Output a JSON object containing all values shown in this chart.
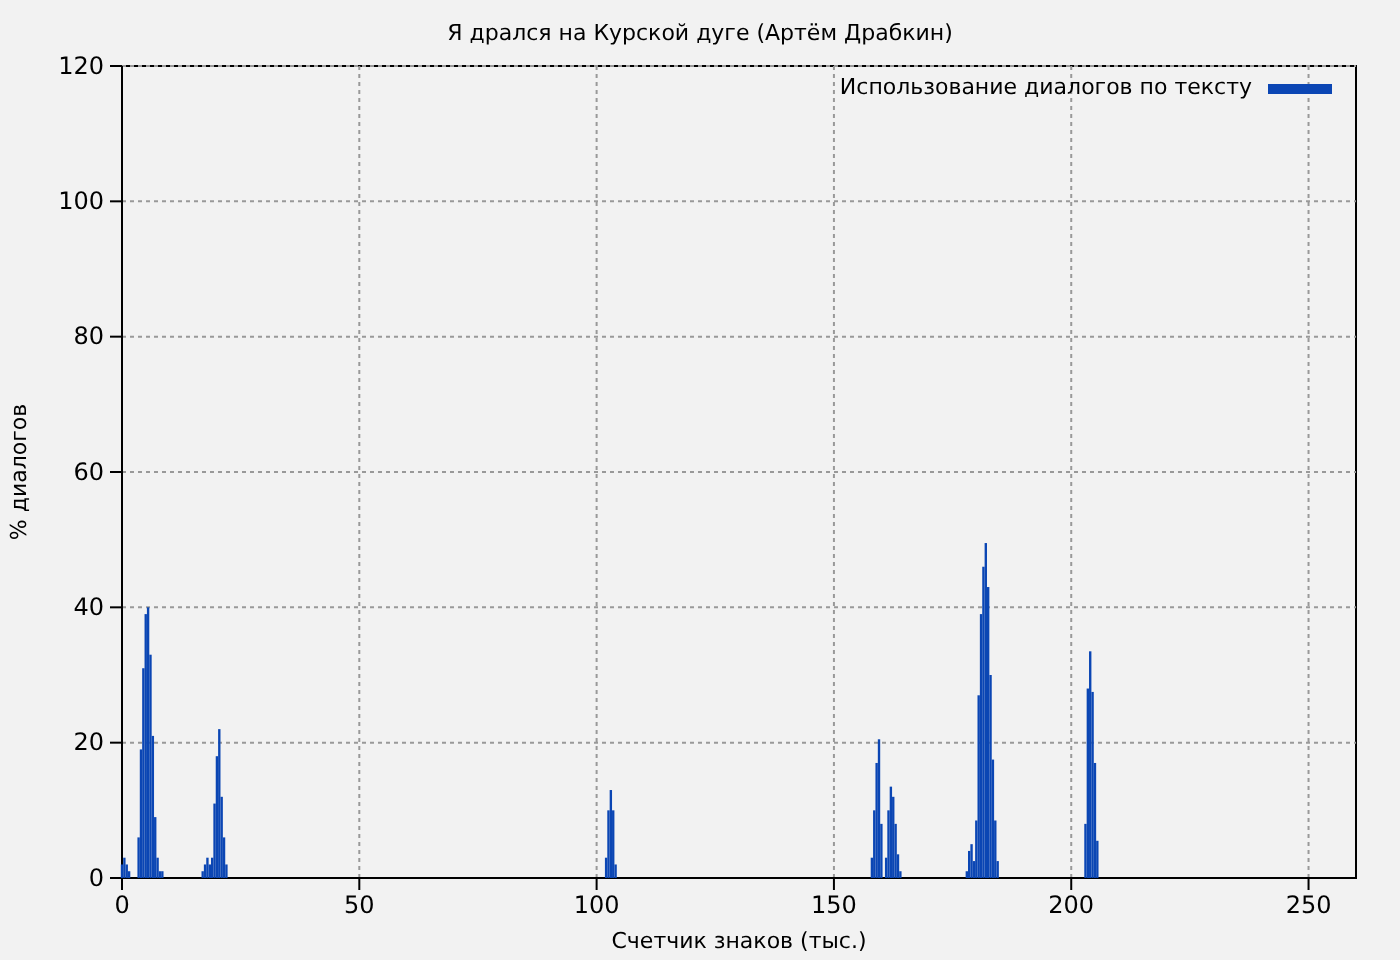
{
  "chart_data": {
    "type": "bar",
    "title": "Я дрался на Курской дуге (Артём Драбкин)",
    "xlabel": "Счетчик знаков (тыс.)",
    "ylabel": "% диалогов",
    "xlim": [
      0,
      260
    ],
    "xticks": [
      0,
      50,
      100,
      150,
      200,
      250
    ],
    "ylim": [
      0,
      120
    ],
    "yticks": [
      0,
      20,
      40,
      60,
      80,
      100,
      120
    ],
    "grid": true,
    "line_style": "dotted",
    "legend": "top right",
    "series": [
      {
        "name": "Использование диалогов по тексту",
        "color": "#0b46b4",
        "x": [
          0,
          0.5,
          1,
          1.5,
          3.5,
          4,
          4.5,
          5,
          5.5,
          6,
          6.5,
          7,
          7.5,
          8,
          8.5,
          17,
          17.5,
          18,
          18.5,
          19,
          19.5,
          20,
          20.5,
          21,
          21.5,
          22,
          102,
          102.5,
          103,
          103.5,
          104,
          158,
          158.5,
          159,
          159.5,
          160,
          161,
          161.5,
          162,
          162.5,
          163,
          163.5,
          164,
          178,
          178.5,
          179,
          179.5,
          180,
          180.5,
          181,
          181.5,
          182,
          182.5,
          183,
          183.5,
          184,
          184.5,
          203,
          203.5,
          204,
          204.5,
          205,
          205.5
        ],
        "values": [
          2,
          3,
          2,
          1,
          6,
          19,
          31,
          39,
          40,
          33,
          21,
          9,
          3,
          1,
          1,
          1,
          2,
          3,
          2,
          3,
          11,
          18,
          22,
          12,
          6,
          2,
          3,
          10,
          13,
          10,
          2,
          3,
          10,
          17,
          20.5,
          8,
          3,
          10,
          13.5,
          12,
          8,
          3.5,
          1,
          1,
          4,
          5,
          2.5,
          8.5,
          27,
          39,
          46,
          49.5,
          43,
          30,
          17.5,
          8.5,
          2.5,
          8,
          28,
          33.5,
          27.5,
          17,
          5.5
        ]
      }
    ]
  }
}
